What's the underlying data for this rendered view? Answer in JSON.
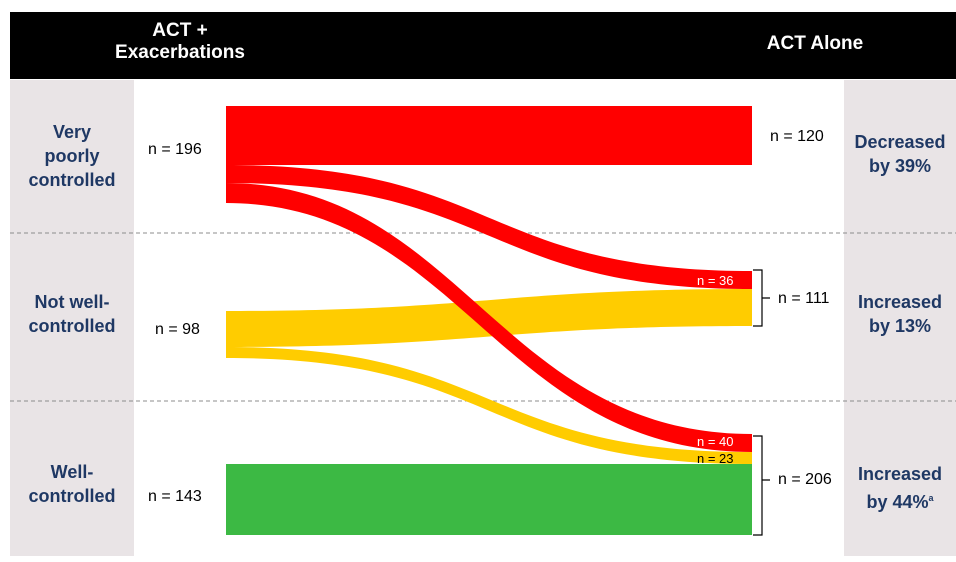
{
  "header": {
    "left_line1": "ACT +",
    "left_line2": "Exacerbations",
    "right": "ACT Alone"
  },
  "rows": {
    "very_poor": {
      "label_line1": "Very",
      "label_line2": "poorly",
      "label_line3": "controlled",
      "n_left": "n = 196",
      "n_right": "n = 120",
      "outcome_line1": "Decreased",
      "outcome_line2": "by 39%"
    },
    "not_well": {
      "label_line1": "Not well-",
      "label_line2": "controlled",
      "n_left": "n = 98",
      "n_right": "n = 111",
      "outcome_line1": "Increased",
      "outcome_line2": "by 13%"
    },
    "well": {
      "label_line1": "Well-",
      "label_line2": "controlled",
      "n_left": "n = 143",
      "n_right": "n = 206",
      "outcome_line1": "Increased",
      "outcome_line2": "by 44%",
      "outcome_sup": "a"
    }
  },
  "flow_labels": {
    "vp_to_nw": "n = 36",
    "vp_to_wc": "n = 40",
    "nw_to_wc": "n = 23"
  },
  "colors": {
    "very_poor": "#ff0000",
    "not_well": "#ffcc00",
    "well": "#3cb944",
    "panel": "#e9e4e6",
    "label_text": "#1f3864"
  }
}
